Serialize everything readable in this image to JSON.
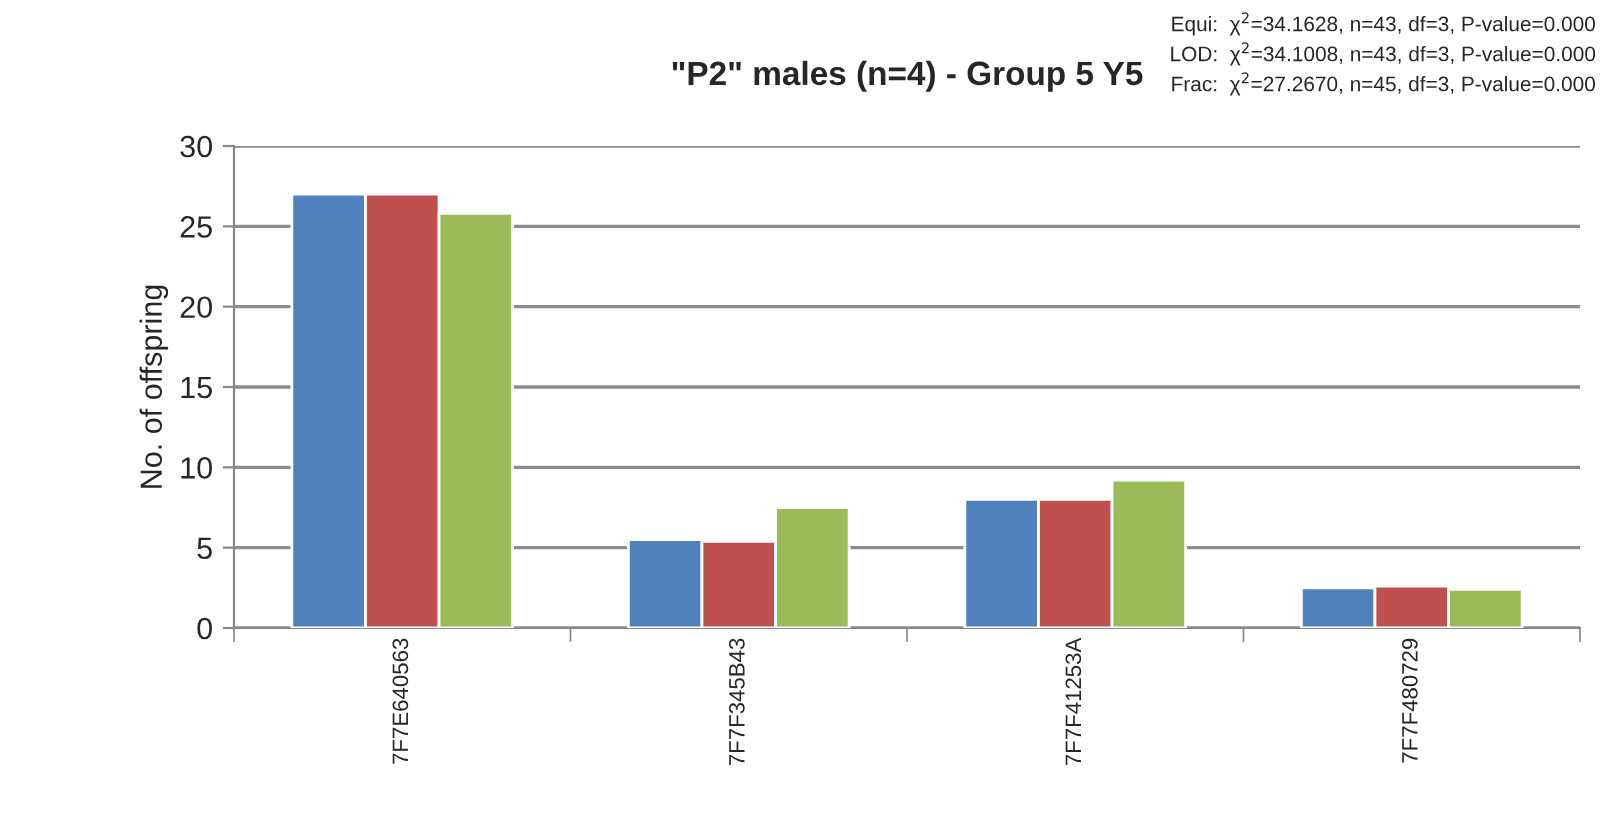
{
  "chart_data": {
    "type": "bar",
    "title": "\"P2\" males (n=4) - Group 5 Y5",
    "ylabel": "No. of offspring",
    "categories": [
      "7F7E640563",
      "7F7F345B43",
      "7F7F41253A",
      "7F7F480729"
    ],
    "series": [
      {
        "color": "#4f81bd",
        "values": [
          27,
          5.5,
          8,
          2.5
        ]
      },
      {
        "color": "#c0504d",
        "values": [
          27,
          5.4,
          8,
          2.6
        ]
      },
      {
        "color": "#9bbb59",
        "values": [
          25.8,
          7.5,
          9.2,
          2.4
        ]
      }
    ],
    "ylim": [
      0,
      30
    ],
    "yticks": [
      0,
      5,
      10,
      15,
      20,
      25,
      30
    ],
    "grid": "y",
    "legend": false,
    "annotations": [
      "Equi:  χ$^{2}$=34.1628, n=43, df=3, P-value=0.000",
      "LOD:  χ$^{2}$=34.1008, n=43, df=3, P-value=0.000",
      "Frac:  χ$^{2}$=27.2670, n=45, df=3, P-value=0.000"
    ]
  }
}
